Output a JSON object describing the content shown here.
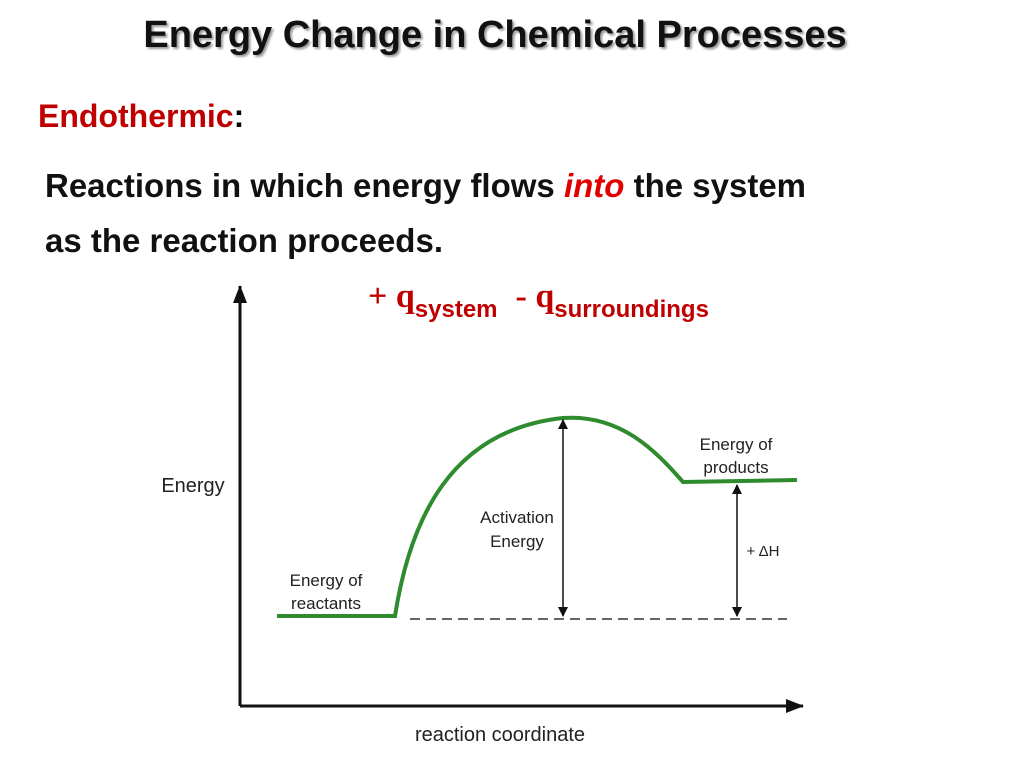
{
  "header": {
    "title": "Energy Change in Chemical Processes"
  },
  "definition": {
    "term": "Endothermic",
    "colon": ":",
    "text_before": "Reactions in which energy flows ",
    "emphasis": "into",
    "text_after": " the system as the reaction proceeds."
  },
  "signs": {
    "system_sign": "+ q",
    "system_sub": "system",
    "surroundings_sign": "- q",
    "surroundings_sub": "surroundings"
  },
  "diagram": {
    "y_axis_label": "Energy",
    "x_axis_label": "reaction coordinate",
    "reactants_label": [
      "Energy of",
      "reactants"
    ],
    "activation_label": [
      "Activation",
      "Energy"
    ],
    "products_label": [
      "Energy of",
      "products"
    ],
    "delta_label": "+ ΔH"
  }
}
